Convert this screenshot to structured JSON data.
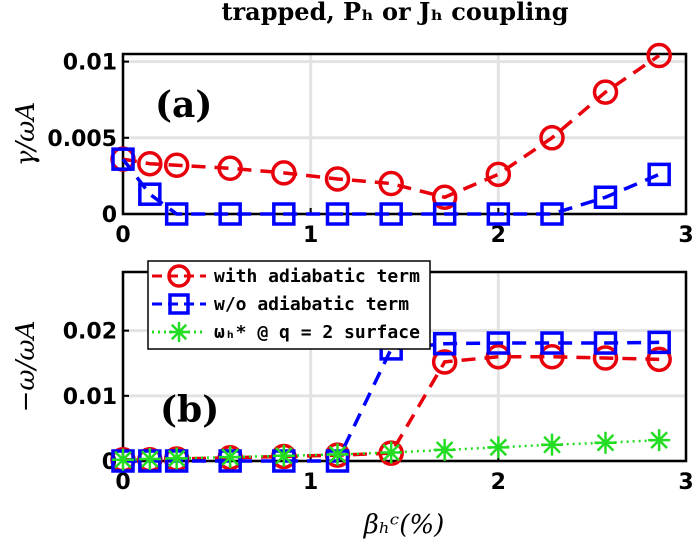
{
  "chart_data": [
    {
      "type": "line",
      "panel_label": "(a)",
      "title": "trapped, Pₕ or Jₕ coupling",
      "ylabel": "γ/ωA",
      "xlim": [
        0,
        3
      ],
      "ylim": [
        0,
        0.0105
      ],
      "x_ticks": [
        "0",
        "1",
        "2",
        "3"
      ],
      "y_ticks": [
        "0",
        "0.005",
        "0.01"
      ],
      "y_tick_values": [
        0,
        0.005,
        0.01
      ],
      "grid": true,
      "series": [
        {
          "name": "with adiabatic term",
          "color": "#e8000b",
          "marker": "circle",
          "x": [
            0,
            0.143,
            0.286,
            0.571,
            0.857,
            1.143,
            1.429,
            1.714,
            2.0,
            2.286,
            2.571,
            2.857
          ],
          "y": [
            0.0036,
            0.0033,
            0.0032,
            0.003,
            0.0027,
            0.0023,
            0.002,
            0.0011,
            0.0026,
            0.005,
            0.008,
            0.0104
          ]
        },
        {
          "name": "w/o adiabatic term",
          "color": "#0000ff",
          "marker": "square",
          "x": [
            0,
            0.143,
            0.286,
            0.571,
            0.857,
            1.143,
            1.429,
            1.714,
            2.0,
            2.286,
            2.571,
            2.857
          ],
          "y": [
            0.0036,
            0.0013,
            0,
            0,
            0,
            0,
            0,
            0,
            0,
            0,
            0.0011,
            0.0026
          ]
        }
      ]
    },
    {
      "type": "line",
      "panel_label": "(b)",
      "ylabel": "−ω/ωA",
      "xlabel": "βₕᶜ(%)",
      "xlim": [
        0,
        3
      ],
      "ylim": [
        0,
        0.029
      ],
      "x_ticks": [
        "0",
        "1",
        "2",
        "3"
      ],
      "y_ticks": [
        "0",
        "0.01",
        "0.02"
      ],
      "y_tick_values": [
        0,
        0.01,
        0.02
      ],
      "grid": true,
      "legend": "top-left",
      "series": [
        {
          "name": "with adiabatic term",
          "color": "#e8000b",
          "marker": "circle",
          "x": [
            0,
            0.143,
            0.286,
            0.571,
            0.857,
            1.143,
            1.429,
            1.714,
            2.0,
            2.286,
            2.571,
            2.857
          ],
          "y": [
            0.0002,
            0.0002,
            0.0003,
            0.0005,
            0.0007,
            0.0009,
            0.0012,
            0.0152,
            0.016,
            0.016,
            0.0158,
            0.0156
          ]
        },
        {
          "name": "w/o adiabatic term",
          "color": "#0000ff",
          "marker": "square",
          "x": [
            0,
            0.143,
            0.286,
            0.571,
            0.857,
            1.143,
            1.429,
            1.714,
            2.0,
            2.286,
            2.571,
            2.857
          ],
          "y": [
            0,
            0,
            0,
            0,
            0,
            0,
            0.0172,
            0.018,
            0.0181,
            0.0181,
            0.0181,
            0.0182
          ]
        },
        {
          "name": "ωₕ* @ q = 2 surface",
          "color": "#22dd22",
          "marker": "asterisk",
          "x": [
            0,
            0.143,
            0.286,
            0.571,
            0.857,
            1.143,
            1.429,
            1.714,
            2.0,
            2.286,
            2.571,
            2.857
          ],
          "y": [
            0.0002,
            0.0003,
            0.0004,
            0.0006,
            0.0008,
            0.001,
            0.0013,
            0.0017,
            0.0021,
            0.0025,
            0.0028,
            0.0032
          ]
        }
      ]
    }
  ]
}
